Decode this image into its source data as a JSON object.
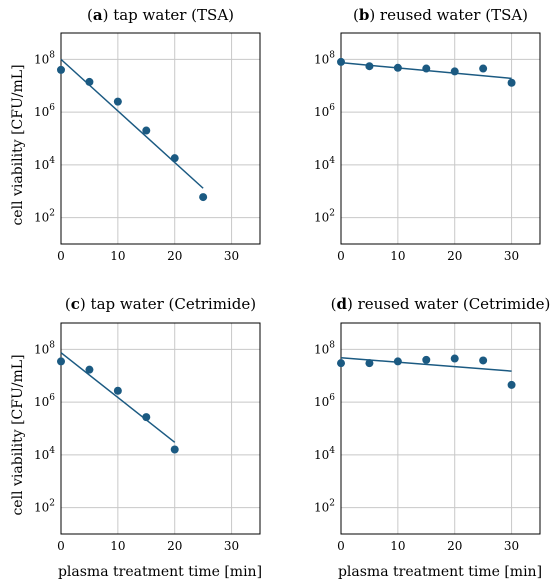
{
  "figure": {
    "ylabel": "cell viability [CFU/mL]",
    "xlabel": "plasma treatment time [min]"
  },
  "colors": {
    "series": "#1b5a82",
    "grid": "#c8c8c8",
    "axis": "#000000"
  },
  "chart_data": [
    {
      "type": "scatter",
      "panel_letter": "a",
      "title": "tap water (TSA)",
      "xlim": [
        0,
        35
      ],
      "ylim": [
        10,
        1000000000
      ],
      "y_scale": "log",
      "x_ticks": [
        0,
        10,
        20,
        30
      ],
      "y_ticks": [
        {
          "value": 100,
          "exp": "2"
        },
        {
          "value": 10000,
          "exp": "4"
        },
        {
          "value": 1000000,
          "exp": "6"
        },
        {
          "value": 100000000,
          "exp": "8"
        }
      ],
      "grid": true,
      "x": [
        0,
        5,
        10,
        15,
        20,
        25
      ],
      "y": [
        40000000,
        14000000,
        2500000,
        200000,
        18000,
        600
      ],
      "fit": {
        "x": [
          0,
          25
        ],
        "y": [
          100000000,
          1300
        ]
      }
    },
    {
      "type": "scatter",
      "panel_letter": "b",
      "title": "reused water (TSA)",
      "xlim": [
        0,
        35
      ],
      "ylim": [
        10,
        1000000000
      ],
      "y_scale": "log",
      "x_ticks": [
        0,
        10,
        20,
        30
      ],
      "y_ticks": [
        {
          "value": 100,
          "exp": "2"
        },
        {
          "value": 10000,
          "exp": "4"
        },
        {
          "value": 1000000,
          "exp": "6"
        },
        {
          "value": 100000000,
          "exp": "8"
        }
      ],
      "grid": true,
      "x": [
        0,
        5,
        10,
        15,
        20,
        25,
        30
      ],
      "y": [
        80000000,
        55000000,
        48000000,
        45000000,
        35000000,
        45000000,
        13000000
      ],
      "fit": {
        "x": [
          0,
          30
        ],
        "y": [
          75000000,
          19000000
        ]
      }
    },
    {
      "type": "scatter",
      "panel_letter": "c",
      "title": "tap water (Cetrimide)",
      "xlim": [
        0,
        35
      ],
      "ylim": [
        10,
        1000000000
      ],
      "y_scale": "log",
      "x_ticks": [
        0,
        10,
        20,
        30
      ],
      "y_ticks": [
        {
          "value": 100,
          "exp": "2"
        },
        {
          "value": 10000,
          "exp": "4"
        },
        {
          "value": 1000000,
          "exp": "6"
        },
        {
          "value": 100000000,
          "exp": "8"
        }
      ],
      "grid": true,
      "x": [
        0,
        5,
        10,
        15,
        20
      ],
      "y": [
        35000000,
        17000000,
        2700000,
        270000,
        16000
      ],
      "fit": {
        "x": [
          0,
          20
        ],
        "y": [
          75000000,
          30000
        ]
      }
    },
    {
      "type": "scatter",
      "panel_letter": "d",
      "title": "reused water (Cetrimide)",
      "xlim": [
        0,
        35
      ],
      "ylim": [
        10,
        1000000000
      ],
      "y_scale": "log",
      "x_ticks": [
        0,
        10,
        20,
        30
      ],
      "y_ticks": [
        {
          "value": 100,
          "exp": "2"
        },
        {
          "value": 10000,
          "exp": "4"
        },
        {
          "value": 1000000,
          "exp": "6"
        },
        {
          "value": 100000000,
          "exp": "8"
        }
      ],
      "grid": true,
      "x": [
        0,
        5,
        10,
        15,
        20,
        25,
        30
      ],
      "y": [
        30000000,
        30000000,
        35000000,
        40000000,
        45000000,
        38000000,
        4500000
      ],
      "fit": {
        "x": [
          0,
          30
        ],
        "y": [
          48000000,
          15000000
        ]
      }
    }
  ]
}
